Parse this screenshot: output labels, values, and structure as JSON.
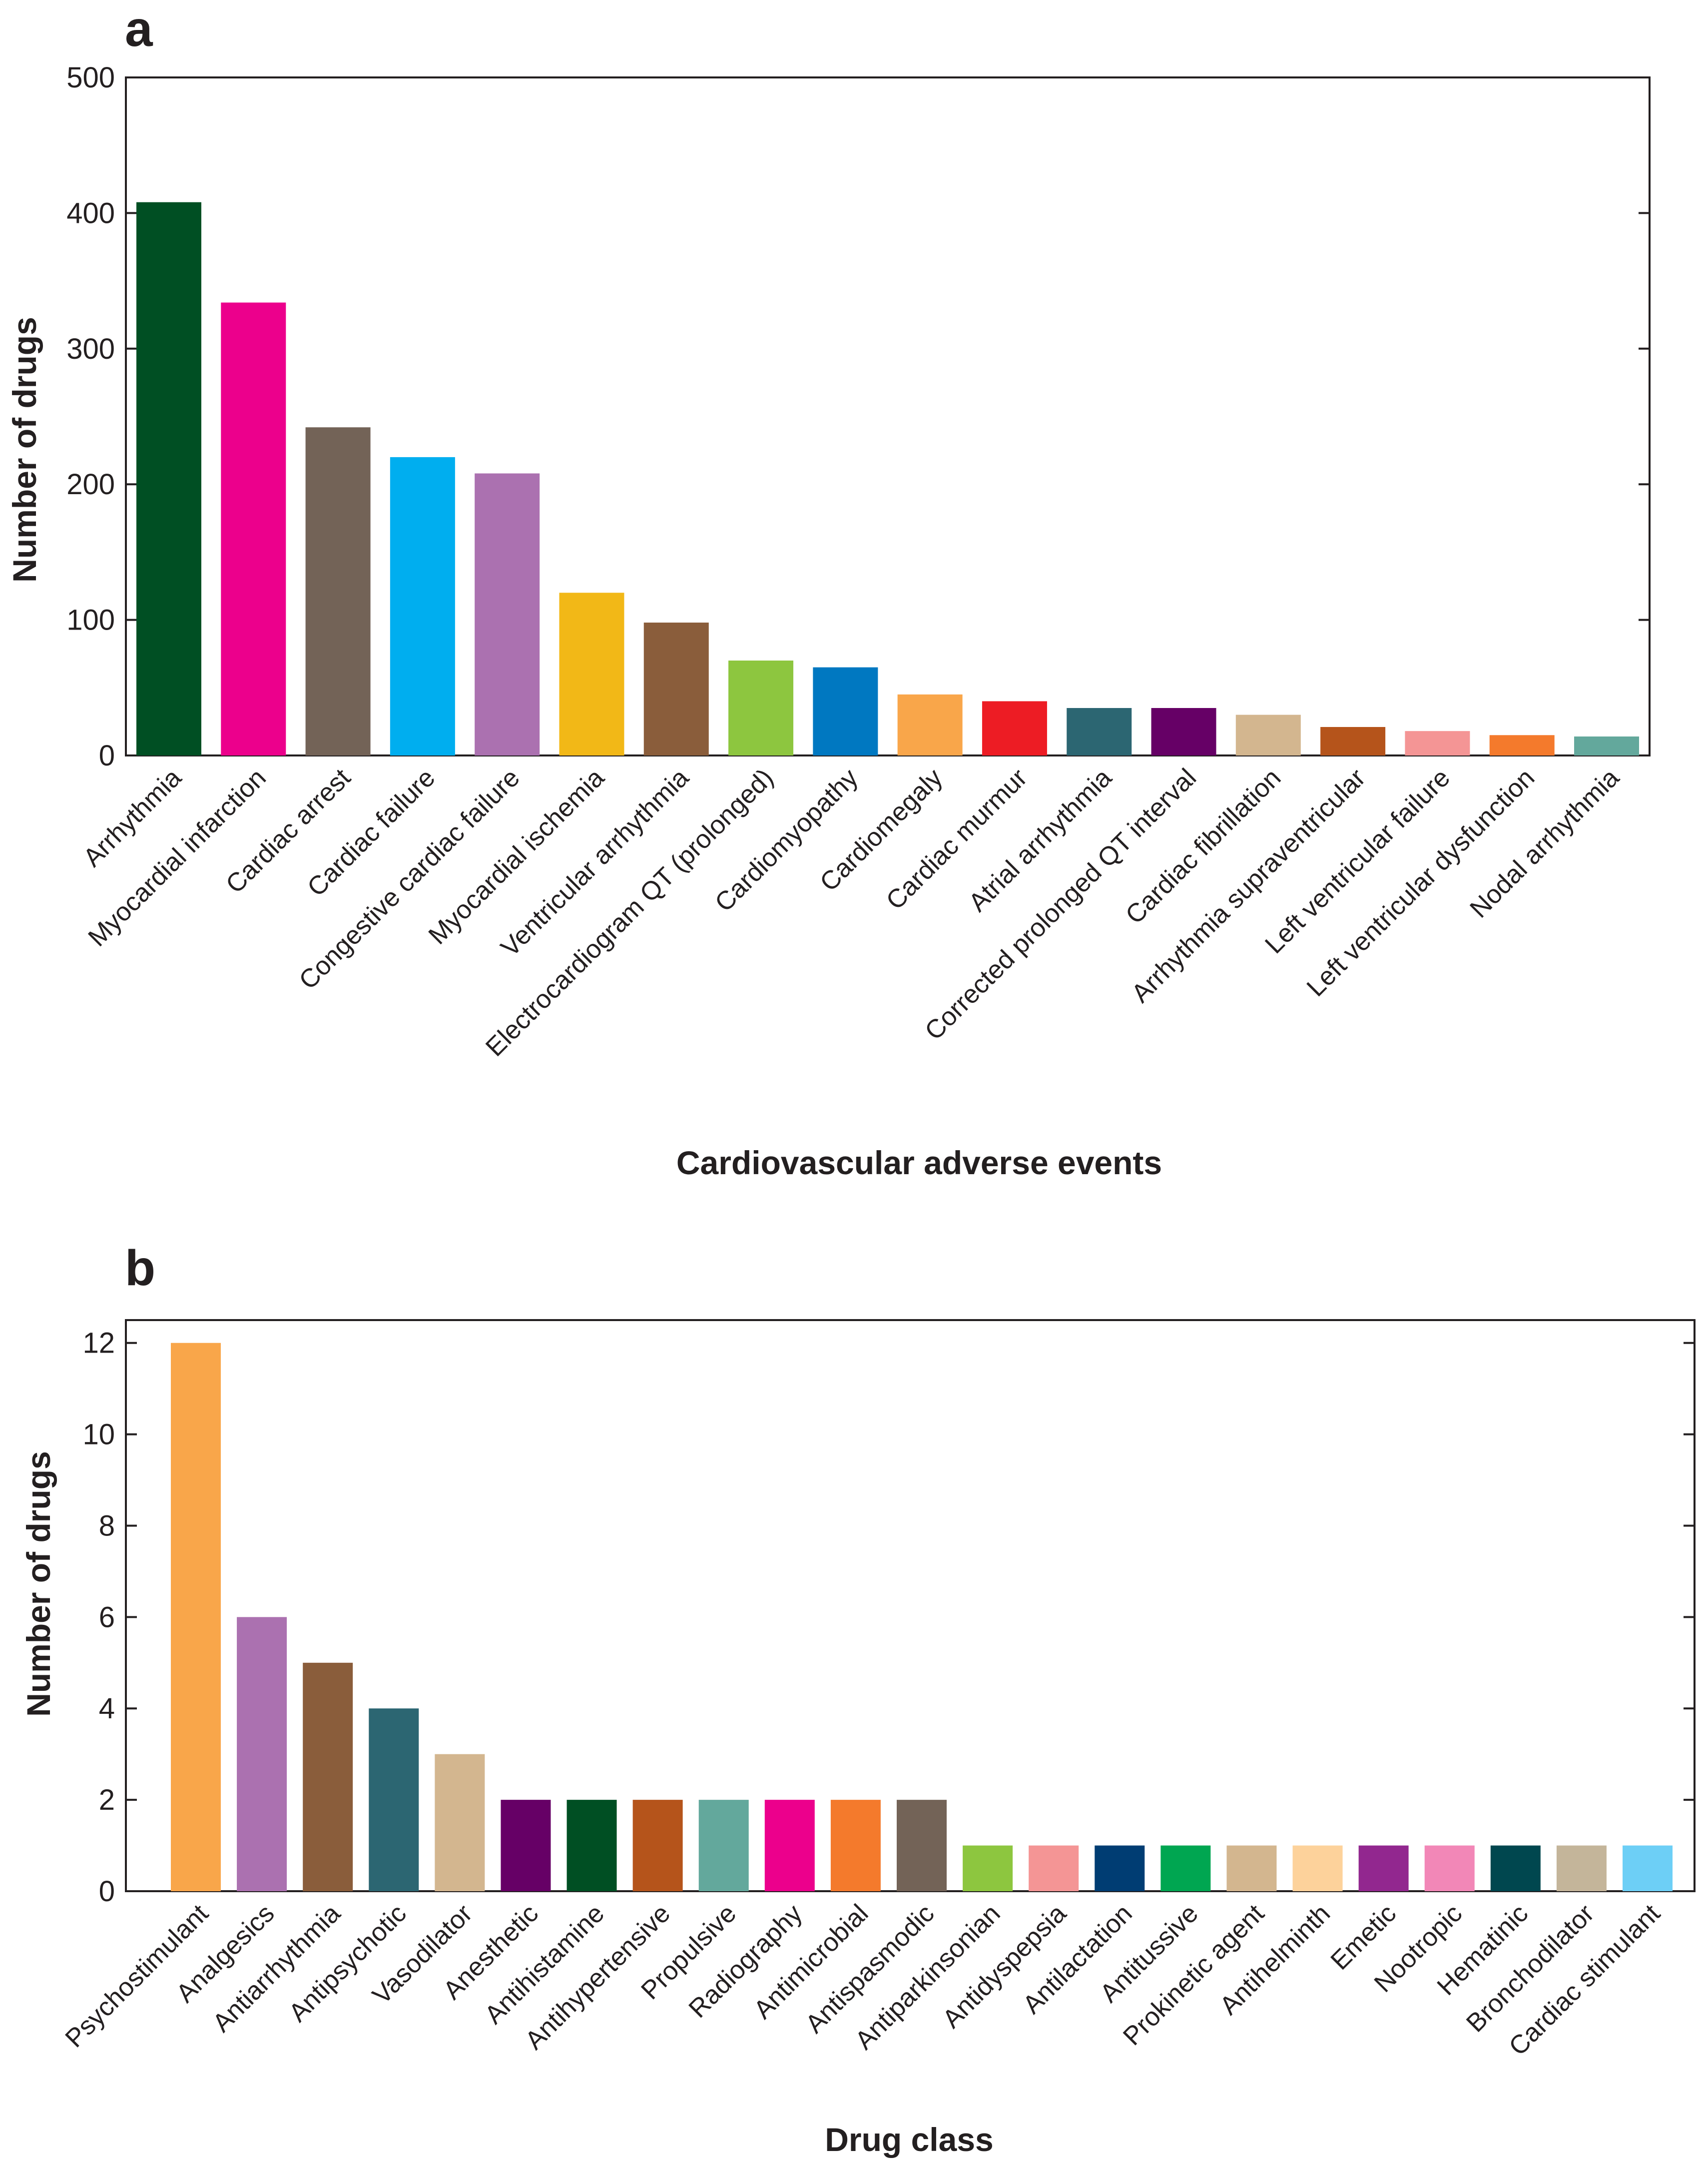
{
  "chart_data": [
    {
      "type": "bar",
      "panel": "a",
      "title": "",
      "xlabel": "Cardiovascular adverse events",
      "ylabel": "Number of drugs",
      "ylim": [
        0,
        500
      ],
      "yticks": [
        0,
        100,
        200,
        300,
        400,
        500
      ],
      "grid": false,
      "categories": [
        "Arrhythmia",
        "Myocardial infarction",
        "Cardiac arrest",
        "Cardiac failure",
        "Congestive cardiac failure",
        "Myocardial ischemia",
        "Ventricular arrhythmia",
        "Electrocardiogram QT (prolonged)",
        "Cardiomyopathy",
        "Cardiomegaly",
        "Cardiac murmur",
        "Atrial arrhythmia",
        "Corrected prolonged QT interval",
        "Cardiac fibrillation",
        "Arrhythmia supraventricular",
        "Left ventricular failure",
        "Left ventricular dysfunction",
        "Nodal arrhythmia"
      ],
      "values": [
        408,
        334,
        242,
        220,
        208,
        120,
        98,
        70,
        65,
        45,
        40,
        35,
        35,
        30,
        21,
        18,
        15,
        14
      ],
      "colors": [
        "#004f23",
        "#ec008c",
        "#736357",
        "#00aeef",
        "#ab71b0",
        "#f2b817",
        "#8a5d3b",
        "#8dc63f",
        "#0078c1",
        "#f9a64a",
        "#ed1c24",
        "#2c6672",
        "#660066",
        "#d3b68f",
        "#b5541b",
        "#f49595",
        "#f47a2c",
        "#63a89c"
      ]
    },
    {
      "type": "bar",
      "panel": "b",
      "title": "",
      "xlabel": "Drug class",
      "ylabel": "Number of drugs",
      "ylim": [
        0,
        12.5
      ],
      "yticks": [
        0,
        2,
        4,
        6,
        8,
        10,
        12
      ],
      "grid": false,
      "categories": [
        "Psychostimulant",
        "Analgesics",
        "Antiarrhythmia",
        "Antipsychotic",
        "Vasodilator",
        "Anesthetic",
        "Antihistamine",
        "Antihypertensive",
        "Propulsive",
        "Radiography",
        "Antimicrobial",
        "Antispasmodic",
        "Antiparkinsonian",
        "Antidyspepsia",
        "Antilactation",
        "Antitussive",
        "Prokinetic agent",
        "Antihelminth",
        "Emetic",
        "Nootropic",
        "Hematinic",
        "Bronchodilator",
        "Cardiac stimulant"
      ],
      "values": [
        12,
        6,
        5,
        4,
        3,
        2,
        2,
        2,
        2,
        2,
        2,
        2,
        1,
        1,
        1,
        1,
        1,
        1,
        1,
        1,
        1,
        1,
        1
      ],
      "colors": [
        "#f9a64a",
        "#ab71b0",
        "#8a5d3b",
        "#2c6672",
        "#d3b68f",
        "#660066",
        "#004f23",
        "#b5541b",
        "#63a89c",
        "#ec008c",
        "#f47a2c",
        "#736357",
        "#8dc63f",
        "#f49595",
        "#003d73",
        "#00a651",
        "#d3b68f",
        "#fdd29b",
        "#92278f",
        "#f287b7",
        "#00474f",
        "#c4b59a",
        "#6dcff6"
      ]
    }
  ]
}
